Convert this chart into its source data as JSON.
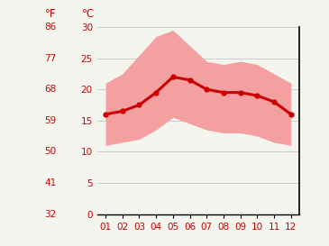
{
  "months": [
    1,
    2,
    3,
    4,
    5,
    6,
    7,
    8,
    9,
    10,
    11,
    12
  ],
  "month_labels": [
    "01",
    "02",
    "03",
    "04",
    "05",
    "06",
    "07",
    "08",
    "09",
    "10",
    "11",
    "12"
  ],
  "avg_temp": [
    16.0,
    16.5,
    17.5,
    19.5,
    22.0,
    21.5,
    20.0,
    19.5,
    19.5,
    19.0,
    18.0,
    16.0
  ],
  "temp_max": [
    21.0,
    22.5,
    25.5,
    28.5,
    29.5,
    27.0,
    24.5,
    24.0,
    24.5,
    24.0,
    22.5,
    21.0
  ],
  "temp_min": [
    11.0,
    11.5,
    12.0,
    13.5,
    15.5,
    14.5,
    13.5,
    13.0,
    13.0,
    12.5,
    11.5,
    11.0
  ],
  "line_color": "#cc0000",
  "band_color": "#f4a0a0",
  "grid_color": "#cccccc",
  "text_color": "#cc0000",
  "bg_color": "#f5f5f0",
  "ylim_c": [
    0,
    30
  ],
  "yticks_c": [
    0,
    5,
    10,
    15,
    20,
    25,
    30
  ],
  "yticks_f": [
    32,
    41,
    50,
    59,
    68,
    77,
    86
  ],
  "label_f": "°F",
  "label_c": "°C",
  "tick_fontsize": 7.5,
  "header_fontsize": 8.5,
  "line_width": 2.2,
  "marker_size": 3.5
}
